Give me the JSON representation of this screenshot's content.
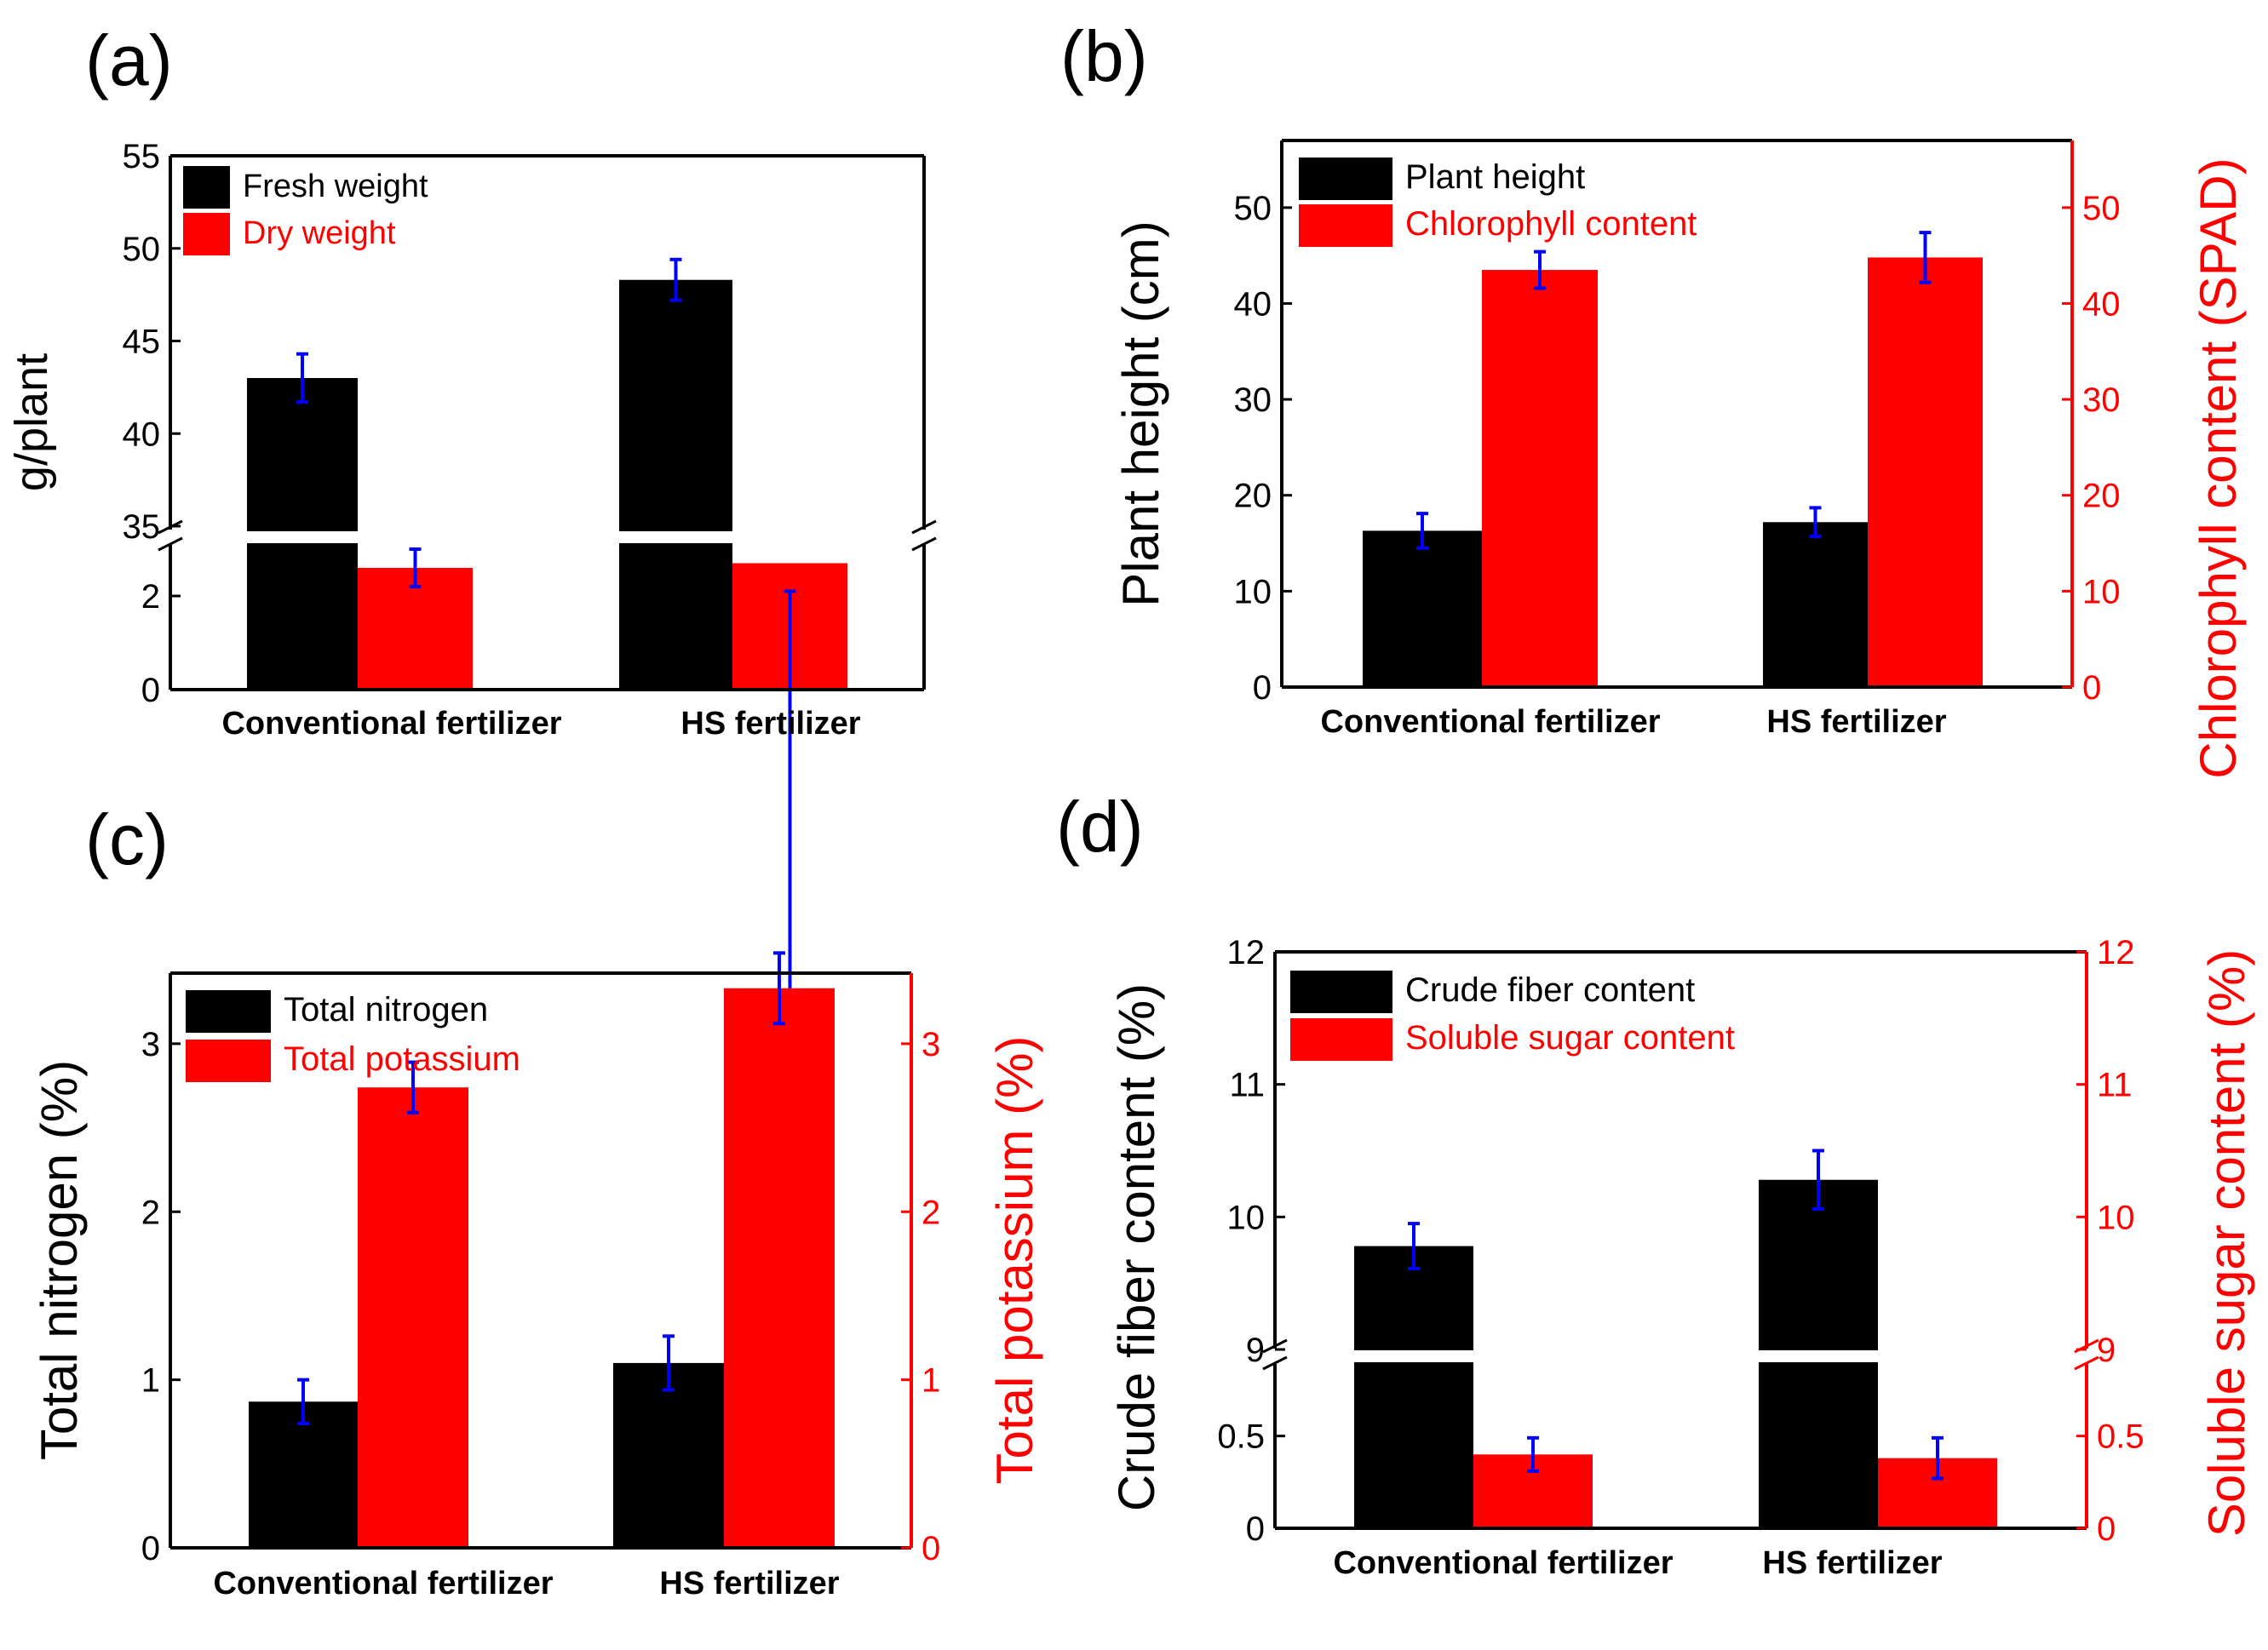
{
  "colors": {
    "black": "#000000",
    "red": "#ff0000",
    "error": "#0000ff"
  },
  "chart_data": [
    {
      "panel": "(a)",
      "type": "bar",
      "broken_axis": true,
      "categories": [
        "Conventional fertilizer",
        "HS fertilizer"
      ],
      "ylabel": "g/plant",
      "ylim_lower": [
        0,
        3
      ],
      "ylim_upper": [
        35,
        55
      ],
      "yticks_lower": [
        0,
        2
      ],
      "yticks_upper": [
        35,
        40,
        45,
        50,
        55
      ],
      "series": [
        {
          "name": "Fresh weight",
          "color": "#000000",
          "values": [
            43.0,
            48.3
          ],
          "errors": [
            1.3,
            1.1
          ]
        },
        {
          "name": "Dry weight",
          "color": "#ff0000",
          "values": [
            2.6,
            2.7
          ],
          "errors": [
            0.4,
            0.6
          ]
        }
      ],
      "legend_position": "top-left"
    },
    {
      "panel": "(b)",
      "type": "bar",
      "dual_axis": true,
      "categories": [
        "Conventional fertilizer",
        "HS fertilizer"
      ],
      "ylabel": "Plant height (cm)",
      "y2label": "Chlorophyll content (SPAD)",
      "ylim": [
        0,
        50
      ],
      "y2lim": [
        0,
        50
      ],
      "yticks": [
        0,
        10,
        20,
        30,
        40,
        50
      ],
      "y2ticks": [
        0,
        10,
        20,
        30,
        40,
        50
      ],
      "series": [
        {
          "name": "Plant height",
          "color": "#000000",
          "axis": "left",
          "values": [
            16.3,
            17.2
          ],
          "errors": [
            1.8,
            1.5
          ]
        },
        {
          "name": "Chlorophyll content",
          "color": "#ff0000",
          "axis": "right",
          "values": [
            43.5,
            44.8
          ],
          "errors": [
            1.9,
            2.6
          ]
        }
      ],
      "legend_position": "top-left"
    },
    {
      "panel": "(c)",
      "type": "bar",
      "dual_axis": true,
      "categories": [
        "Conventional fertilizer",
        "HS fertilizer"
      ],
      "ylabel": "Total nitrogen (%)",
      "y2label": "Total potassium (%)",
      "ylim": [
        0,
        3
      ],
      "y2lim": [
        0,
        3
      ],
      "yticks": [
        0,
        1,
        2,
        3
      ],
      "y2ticks": [
        0,
        1,
        2,
        3
      ],
      "series": [
        {
          "name": "Total nitrogen",
          "color": "#000000",
          "axis": "left",
          "values": [
            0.87,
            1.1
          ],
          "errors": [
            0.13,
            0.16
          ]
        },
        {
          "name": "Total potassium",
          "color": "#ff0000",
          "axis": "right",
          "values": [
            2.74,
            3.33
          ],
          "errors": [
            0.15,
            0.21
          ]
        }
      ],
      "legend_position": "top-left"
    },
    {
      "panel": "(d)",
      "type": "bar",
      "dual_axis": true,
      "broken_axis": true,
      "categories": [
        "Conventional fertilizer",
        "HS fertilizer"
      ],
      "ylabel": "Crude fiber content (%)",
      "y2label": "Soluble sugar content (%)",
      "ylim_lower": [
        0.0,
        0.9
      ],
      "ylim_upper": [
        9,
        12
      ],
      "yticks_lower": [
        0.0,
        0.5
      ],
      "yticks_upper": [
        9,
        10,
        11,
        12
      ],
      "series": [
        {
          "name": "Crude fiber content",
          "color": "#000000",
          "axis": "left",
          "values": [
            9.78,
            10.28
          ],
          "errors": [
            0.17,
            0.22
          ]
        },
        {
          "name": "Soluble sugar content",
          "color": "#ff0000",
          "axis": "right",
          "values": [
            0.4,
            0.38
          ],
          "errors": [
            0.09,
            0.11
          ]
        }
      ],
      "legend_position": "top-left"
    }
  ]
}
